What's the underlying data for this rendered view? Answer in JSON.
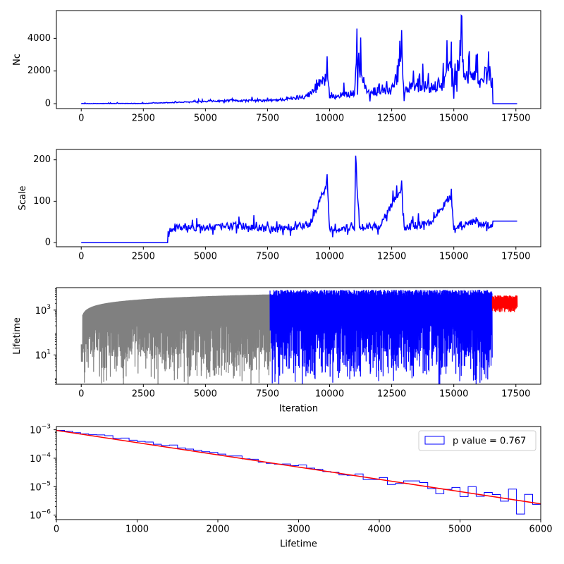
{
  "chart_data": [
    {
      "type": "line",
      "ylabel": "Nc",
      "xlabel": "",
      "xlim": [
        -1000,
        18500
      ],
      "ylim": [
        -300,
        5700
      ],
      "xticks": [
        "0",
        "2500",
        "5000",
        "7500",
        "10000",
        "12500",
        "15000",
        "17500"
      ],
      "yticks": [
        "0",
        "2000",
        "4000"
      ],
      "grid": false,
      "series": [
        {
          "color": "#0000ff",
          "x": [
            0,
            2500,
            3500,
            5000,
            6000,
            7500,
            8500,
            9200,
            9900,
            10000,
            10500,
            11000,
            11100,
            11500,
            12000,
            12500,
            12900,
            13000,
            13500,
            14000,
            14500,
            14900,
            15000,
            15300,
            15500,
            15900,
            16000,
            16400,
            16550,
            16560,
            17550
          ],
          "y": [
            0,
            20,
            100,
            200,
            300,
            300,
            500,
            900,
            2900,
            600,
            900,
            1000,
            4600,
            900,
            1500,
            1300,
            4500,
            1200,
            2000,
            1500,
            1800,
            3800,
            1600,
            5400,
            2500,
            3000,
            1800,
            3200,
            1900,
            0,
            0
          ]
        }
      ]
    },
    {
      "type": "line",
      "ylabel": "Scale",
      "xlabel": "",
      "xlim": [
        -1000,
        18500
      ],
      "ylim": [
        -10,
        225
      ],
      "xticks": [
        "0",
        "2500",
        "5000",
        "7500",
        "10000",
        "12500",
        "15000",
        "17500"
      ],
      "yticks": [
        "0",
        "100",
        "200"
      ],
      "grid": false,
      "series": [
        {
          "color": "#0000ff",
          "x": [
            0,
            3500,
            3550,
            4000,
            5000,
            6000,
            7000,
            7500,
            8500,
            9200,
            9900,
            10000,
            11000,
            11050,
            11200,
            12000,
            12900,
            13000,
            14000,
            14900,
            15000,
            15900,
            16000,
            16550,
            16560,
            17550
          ],
          "y": [
            0,
            0,
            35,
            40,
            40,
            45,
            40,
            35,
            40,
            50,
            165,
            35,
            40,
            210,
            40,
            45,
            150,
            40,
            50,
            130,
            40,
            60,
            50,
            45,
            52,
            52
          ]
        }
      ]
    },
    {
      "type": "line",
      "ylabel": "Lifetime",
      "xlabel": "Iteration",
      "xlim": [
        -1000,
        18500
      ],
      "ylim": [
        0.5,
        10000
      ],
      "yscale": "log",
      "xticks": [
        "0",
        "2500",
        "5000",
        "7500",
        "10000",
        "12500",
        "15000",
        "17500"
      ],
      "grid": false,
      "series": [
        {
          "color": "#808080",
          "x_range": [
            0,
            7600
          ]
        },
        {
          "color": "#0000ff",
          "x_range": [
            7600,
            16550
          ]
        },
        {
          "color": "#ff0000",
          "x_range": [
            16550,
            17550
          ]
        }
      ]
    },
    {
      "type": "histogram",
      "xlabel": "Lifetime",
      "ylabel": "",
      "xlim": [
        0,
        6000
      ],
      "ylim": [
        7e-07,
        0.0013
      ],
      "yscale": "log",
      "xticks": [
        "0",
        "1000",
        "2000",
        "3000",
        "4000",
        "5000",
        "6000"
      ],
      "legend": {
        "placement": "top-right",
        "entries": [
          "p value = 0.767"
        ]
      },
      "fit_line": {
        "color": "#ff0000",
        "x": [
          0,
          6000
        ],
        "y": [
          0.00095,
          2.5e-06
        ]
      },
      "bins": {
        "color": "#0000ff",
        "bin_width": 100,
        "values": [
          0.00095,
          0.00089,
          0.00079,
          0.00072,
          0.00067,
          0.00066,
          0.00062,
          0.0005,
          0.00051,
          0.00043,
          0.00039,
          0.00037,
          0.00031,
          0.00028,
          0.00029,
          0.00023,
          0.00021,
          0.00019,
          0.00017,
          0.00016,
          0.00014,
          0.00012,
          0.00012,
          9.5e-05,
          9.2e-05,
          7.3e-05,
          6.6e-05,
          6.2e-05,
          6.3e-05,
          5.5e-05,
          5.8e-05,
          4.5e-05,
          4.1e-05,
          3.4e-05,
          3.2e-05,
          2.6e-05,
          2.5e-05,
          2.8e-05,
          1.8e-05,
          1.8e-05,
          2.1e-05,
          1.2e-05,
          1.3e-05,
          1.6e-05,
          1.6e-05,
          1.4e-05,
          8.6e-06,
          5.7e-06,
          8.1e-06,
          9.4e-06,
          4.5e-06,
          1.01e-05,
          4.6e-06,
          6.3e-06,
          5.3e-06,
          3.1e-06,
          8.2e-06,
          1.1e-06,
          5.4e-06,
          2.4e-06
        ]
      }
    }
  ]
}
